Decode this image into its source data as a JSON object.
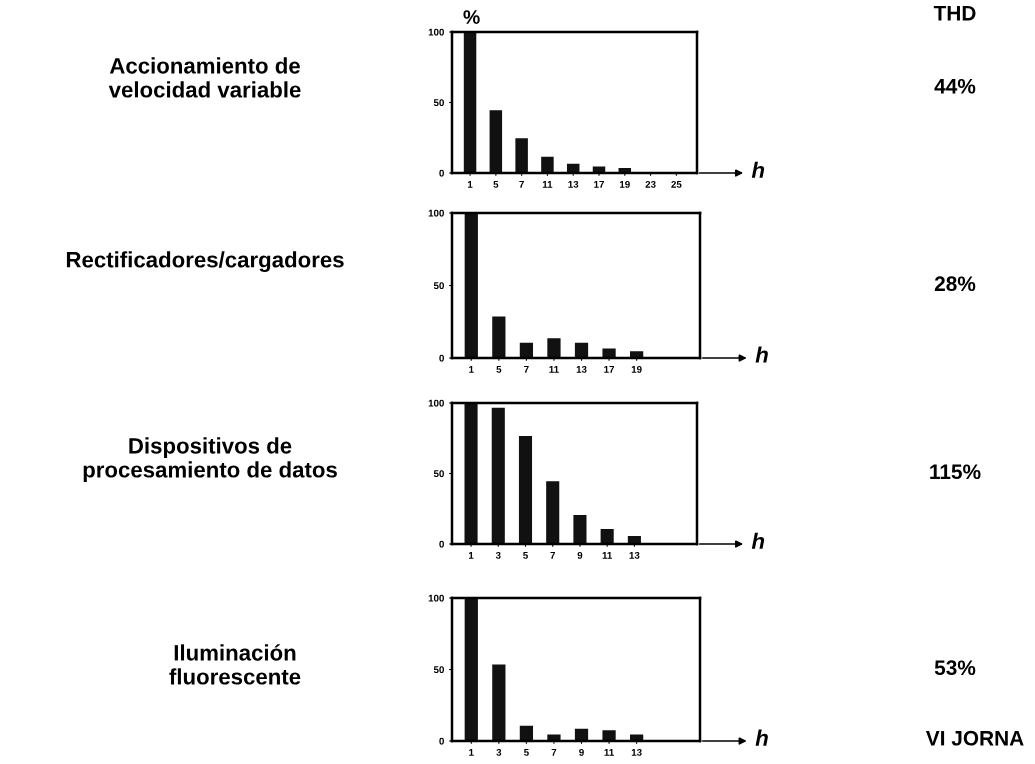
{
  "chart_data": [
    {
      "type": "bar",
      "title": "Accionamiento de\nvelocidad variable",
      "ylabel": "%",
      "xlabel": "h",
      "categories": [
        "1",
        "5",
        "7",
        "11",
        "13",
        "17",
        "19",
        "23",
        "25"
      ],
      "values": [
        100,
        44,
        24,
        11,
        6,
        4,
        3,
        0,
        0
      ],
      "color": "#111111",
      "ylim": [
        0,
        100
      ],
      "yticks": [
        0,
        50,
        100
      ],
      "annotations": [
        "THD",
        "44%"
      ]
    },
    {
      "type": "bar",
      "title": "Rectificadores/cargadores",
      "xlabel": "h",
      "categories": [
        "1",
        "5",
        "7",
        "11",
        "13",
        "17",
        "19"
      ],
      "values": [
        100,
        28,
        10,
        13,
        10,
        6,
        4
      ],
      "color": "#111111",
      "ylim": [
        0,
        100
      ],
      "yticks": [
        0,
        50,
        100
      ],
      "annotations": [
        "28%"
      ]
    },
    {
      "type": "bar",
      "title": "Dispositivos de\nprocesamiento de datos",
      "xlabel": "h",
      "categories": [
        "1",
        "3",
        "5",
        "7",
        "9",
        "11",
        "13"
      ],
      "values": [
        100,
        96,
        76,
        44,
        20,
        10,
        5
      ],
      "color": "#111111",
      "ylim": [
        0,
        100
      ],
      "yticks": [
        0,
        50,
        100
      ],
      "annotations": [
        "115%"
      ]
    },
    {
      "type": "bar",
      "title": "Iluminación\nfluorescente",
      "xlabel": "h",
      "categories": [
        "1",
        "3",
        "5",
        "7",
        "9",
        "11",
        "13"
      ],
      "values": [
        100,
        53,
        10,
        4,
        8,
        7,
        4
      ],
      "color": "#111111",
      "ylim": [
        0,
        100
      ],
      "yticks": [
        0,
        50,
        100
      ],
      "annotations": [
        "53%",
        "VI JORNA"
      ]
    }
  ]
}
